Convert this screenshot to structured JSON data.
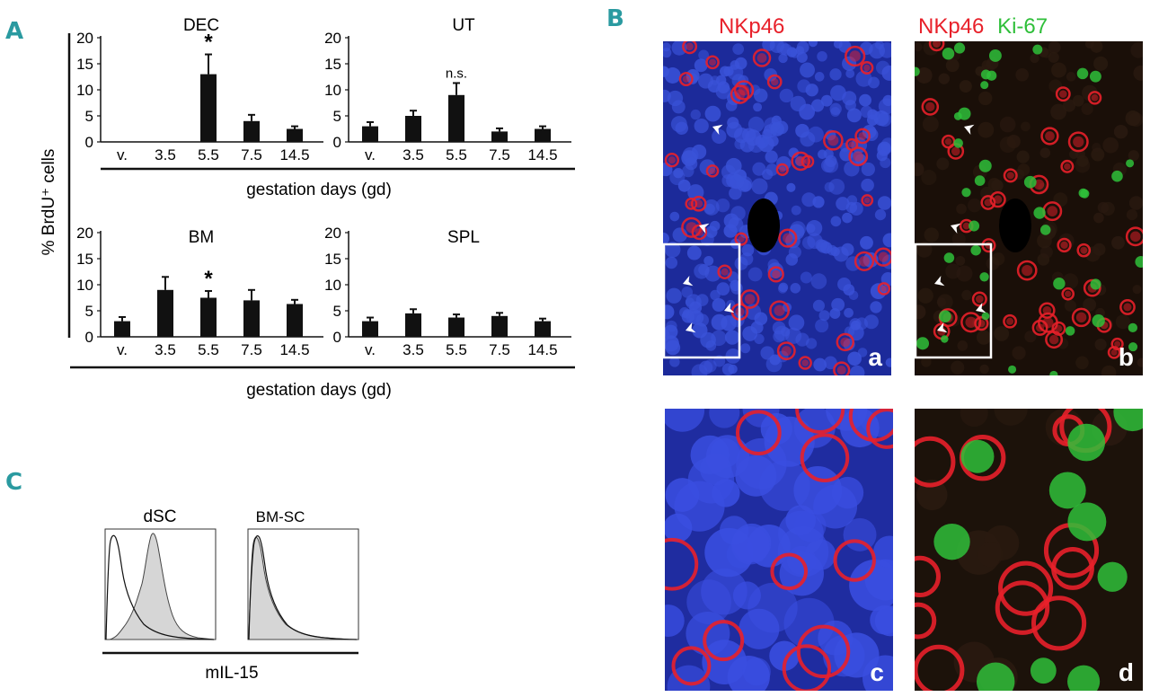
{
  "panels": {
    "A": "A",
    "B": "B",
    "C": "C"
  },
  "panel_a": {
    "ylabel": "% BrdU⁺ cells",
    "xlabel": "gestation days (gd)",
    "categories": [
      "v.",
      "3.5",
      "5.5",
      "7.5",
      "14.5"
    ],
    "colors": {
      "bar": "#111111"
    }
  },
  "chart_data": [
    {
      "type": "bar",
      "title": "DEC",
      "categories": [
        "v.",
        "3.5",
        "5.5",
        "7.5",
        "14.5"
      ],
      "values": [
        0,
        0,
        13,
        4,
        2.5
      ],
      "errors": [
        0,
        0,
        3.8,
        1.2,
        0.5
      ],
      "annotations": [
        {
          "category": "5.5",
          "text": "*"
        }
      ],
      "ylim": [
        0,
        20
      ],
      "yticks": [
        0,
        5,
        10,
        15,
        20
      ],
      "xlabel": "gestation days (gd)",
      "ylabel": "% BrdU⁺ cells"
    },
    {
      "type": "bar",
      "title": "UT",
      "categories": [
        "v.",
        "3.5",
        "5.5",
        "7.5",
        "14.5"
      ],
      "values": [
        3,
        5,
        9,
        2,
        2.5
      ],
      "errors": [
        0.8,
        1.0,
        2.3,
        0.6,
        0.5
      ],
      "annotations": [
        {
          "category": "5.5",
          "text": "n.s."
        }
      ],
      "ylim": [
        0,
        20
      ],
      "yticks": [
        0,
        5,
        10,
        15,
        20
      ],
      "xlabel": "gestation days (gd)",
      "ylabel": "% BrdU⁺ cells"
    },
    {
      "type": "bar",
      "title": "BM",
      "categories": [
        "v.",
        "3.5",
        "5.5",
        "7.5",
        "14.5"
      ],
      "values": [
        3,
        9,
        7.5,
        7,
        6.3
      ],
      "errors": [
        0.8,
        2.5,
        1.3,
        2.0,
        0.8
      ],
      "annotations": [
        {
          "category": "5.5",
          "text": "*"
        }
      ],
      "ylim": [
        0,
        20
      ],
      "yticks": [
        0,
        5,
        10,
        15,
        20
      ],
      "xlabel": "gestation days (gd)",
      "ylabel": "% BrdU⁺ cells"
    },
    {
      "type": "bar",
      "title": "SPL",
      "categories": [
        "v.",
        "3.5",
        "5.5",
        "7.5",
        "14.5"
      ],
      "values": [
        3,
        4.5,
        3.7,
        4,
        3
      ],
      "errors": [
        0.7,
        0.8,
        0.6,
        0.6,
        0.5
      ],
      "annotations": [],
      "ylim": [
        0,
        20
      ],
      "yticks": [
        0,
        5,
        10,
        15,
        20
      ],
      "xlabel": "gestation days (gd)",
      "ylabel": "% BrdU⁺ cells"
    }
  ],
  "panel_b": {
    "title_a": "NKp46",
    "title_b_red": "NKp46",
    "title_b_green": "Ki-67",
    "labels": {
      "a": "a",
      "b": "b",
      "c": "c",
      "d": "d"
    },
    "colors": {
      "red": "#e8202a",
      "green": "#2fbf3a",
      "blue": "#2a3cb8"
    }
  },
  "panel_c": {
    "hist_left_label": "dSC",
    "hist_right_label": "BM-SC",
    "xlabel": "mIL-15"
  }
}
